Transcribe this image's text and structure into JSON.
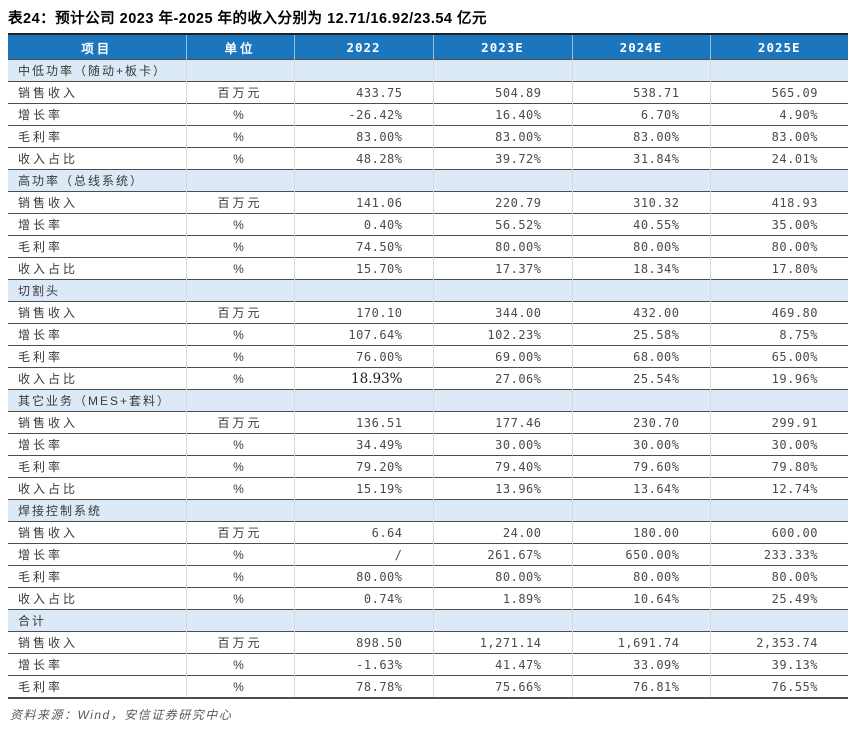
{
  "page": {
    "title": "表24：预计公司 2023 年-2025 年的收入分别为 12.71/16.92/23.54 亿元",
    "source": "资料来源：Wind，安信证券研究中心"
  },
  "colors": {
    "header_bg": "#1b76bd",
    "header_text": "#ffffff",
    "section_bg": "#dce9f6",
    "row_line": "#4d4d4d",
    "column_line": "#d9d9d9",
    "table_top_line": "#222222"
  },
  "table": {
    "headers": [
      "项目",
      "单位",
      "2022",
      "2023E",
      "2024E",
      "2025E"
    ],
    "sections": [
      {
        "name": "中低功率（随动+板卡）",
        "rows": [
          {
            "label": "销售收入",
            "unit": "百万元",
            "values": [
              "433.75",
              "504.89",
              "538.71",
              "565.09"
            ]
          },
          {
            "label": "增长率",
            "unit": "%",
            "values": [
              "-26.42%",
              "16.40%",
              "6.70%",
              "4.90%"
            ]
          },
          {
            "label": "毛利率",
            "unit": "%",
            "values": [
              "83.00%",
              "83.00%",
              "83.00%",
              "83.00%"
            ]
          },
          {
            "label": "收入占比",
            "unit": "%",
            "values": [
              "48.28%",
              "39.72%",
              "31.84%",
              "24.01%"
            ]
          }
        ]
      },
      {
        "name": "高功率（总线系统）",
        "rows": [
          {
            "label": "销售收入",
            "unit": "百万元",
            "values": [
              "141.06",
              "220.79",
              "310.32",
              "418.93"
            ]
          },
          {
            "label": "增长率",
            "unit": "%",
            "values": [
              "0.40%",
              "56.52%",
              "40.55%",
              "35.00%"
            ]
          },
          {
            "label": "毛利率",
            "unit": "%",
            "values": [
              "74.50%",
              "80.00%",
              "80.00%",
              "80.00%"
            ]
          },
          {
            "label": "收入占比",
            "unit": "%",
            "values": [
              "15.70%",
              "17.37%",
              "18.34%",
              "17.80%"
            ]
          }
        ]
      },
      {
        "name": "切割头",
        "rows": [
          {
            "label": "销售收入",
            "unit": "百万元",
            "values": [
              "170.10",
              "344.00",
              "432.00",
              "469.80"
            ]
          },
          {
            "label": "增长率",
            "unit": "%",
            "values": [
              "107.64%",
              "102.23%",
              "25.58%",
              "8.75%"
            ]
          },
          {
            "label": "毛利率",
            "unit": "%",
            "values": [
              "76.00%",
              "69.00%",
              "68.00%",
              "65.00%"
            ]
          },
          {
            "label": "收入占比",
            "unit": "%",
            "values": [
              "18.93%",
              "27.06%",
              "25.54%",
              "19.96%"
            ]
          }
        ]
      },
      {
        "name": "其它业务（MES+套料）",
        "rows": [
          {
            "label": "销售收入",
            "unit": "百万元",
            "values": [
              "136.51",
              "177.46",
              "230.70",
              "299.91"
            ]
          },
          {
            "label": "增长率",
            "unit": "%",
            "values": [
              "34.49%",
              "30.00%",
              "30.00%",
              "30.00%"
            ]
          },
          {
            "label": "毛利率",
            "unit": "%",
            "values": [
              "79.20%",
              "79.40%",
              "79.60%",
              "79.80%"
            ]
          },
          {
            "label": "收入占比",
            "unit": "%",
            "values": [
              "15.19%",
              "13.96%",
              "13.64%",
              "12.74%"
            ]
          }
        ]
      },
      {
        "name": "焊接控制系统",
        "rows": [
          {
            "label": "销售收入",
            "unit": "百万元",
            "values": [
              "6.64",
              "24.00",
              "180.00",
              "600.00"
            ]
          },
          {
            "label": "增长率",
            "unit": "%",
            "values": [
              "/",
              "261.67%",
              "650.00%",
              "233.33%"
            ]
          },
          {
            "label": "毛利率",
            "unit": "%",
            "values": [
              "80.00%",
              "80.00%",
              "80.00%",
              "80.00%"
            ]
          },
          {
            "label": "收入占比",
            "unit": "%",
            "values": [
              "0.74%",
              "1.89%",
              "10.64%",
              "25.49%"
            ]
          }
        ]
      },
      {
        "name": "合计",
        "rows": [
          {
            "label": "销售收入",
            "unit": "百万元",
            "values": [
              "898.50",
              "1,271.14",
              "1,691.74",
              "2,353.74"
            ]
          },
          {
            "label": "增长率",
            "unit": "%",
            "values": [
              "-1.63%",
              "41.47%",
              "33.09%",
              "39.13%"
            ]
          },
          {
            "label": "毛利率",
            "unit": "%",
            "values": [
              "78.78%",
              "75.66%",
              "76.81%",
              "76.55%"
            ]
          }
        ]
      }
    ],
    "style_quirks": {
      "serif_cells": [
        {
          "section": 2,
          "row": 3,
          "col": 0
        }
      ]
    }
  }
}
